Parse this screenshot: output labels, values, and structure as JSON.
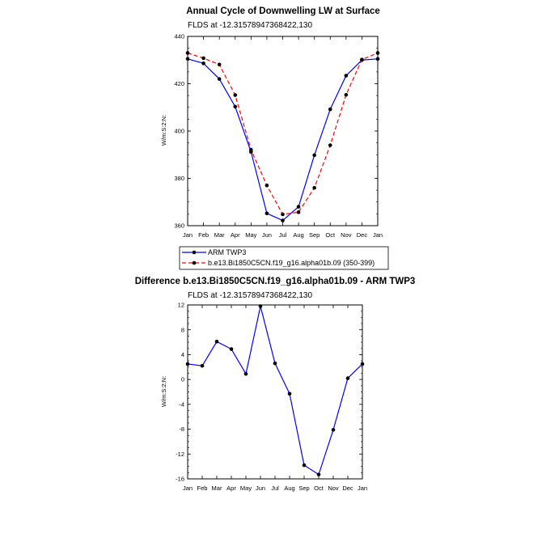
{
  "chart_data": [
    {
      "type": "line",
      "title": "Annual Cycle of Downwelling LW at Surface",
      "subtitle": "FLDS at -12.31578947368422,130",
      "ylabel": "W/m:S:2:N:",
      "xlabel": "",
      "categories": [
        "Jan",
        "Feb",
        "Mar",
        "Apr",
        "May",
        "Jun",
        "Jul",
        "Aug",
        "Sep",
        "Oct",
        "Nov",
        "Dec",
        "Jan"
      ],
      "ylim": [
        360,
        440
      ],
      "yticks": [
        "360",
        "380",
        "400",
        "420",
        "440"
      ],
      "grid": false,
      "legend_position": "bottom-left",
      "series": [
        {
          "name": "ARM TWP3",
          "color": "#0000ff",
          "dash": "solid",
          "values": [
            430.5,
            428.6,
            422.0,
            410.3,
            391.2,
            365.2,
            362.2,
            368.0,
            389.8,
            409.2,
            423.4,
            430.0,
            430.5
          ]
        },
        {
          "name": "b.e13.Bi1850C5CN.f19_g16.alpha01b.09 (350-399)",
          "color": "#ff0000",
          "dash": "dashed",
          "values": [
            433.0,
            430.8,
            428.1,
            415.2,
            392.1,
            377.0,
            364.8,
            365.7,
            376.0,
            394.0,
            415.3,
            430.2,
            433.0
          ]
        }
      ]
    },
    {
      "type": "line",
      "title": "Difference b.e13.Bi1850C5CN.f19_g16.alpha01b.09 - ARM TWP3",
      "subtitle": "FLDS at -12.31578947368422,130",
      "ylabel": "W/m:S:2:N:",
      "xlabel": "",
      "categories": [
        "Jan",
        "Feb",
        "Mar",
        "Apr",
        "May",
        "Jun",
        "Jul",
        "Aug",
        "Sep",
        "Oct",
        "Nov",
        "Dec",
        "Jan"
      ],
      "ylim": [
        -16,
        12
      ],
      "yticks": [
        "-16",
        "-12",
        "-8",
        "-4",
        "0",
        "4",
        "8",
        "12"
      ],
      "grid": false,
      "series": [
        {
          "name": "",
          "color": "#0000ff",
          "dash": "solid",
          "values": [
            2.5,
            2.2,
            6.1,
            4.9,
            0.9,
            11.8,
            2.6,
            -2.3,
            -13.8,
            -15.3,
            -8.1,
            0.2,
            2.5
          ]
        }
      ]
    }
  ]
}
